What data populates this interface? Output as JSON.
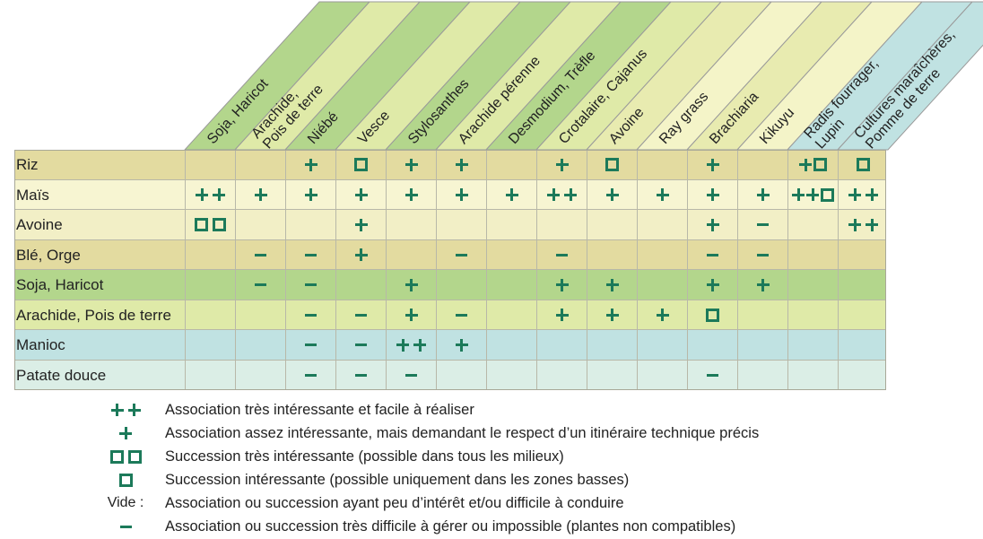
{
  "columns": [
    {
      "label_lines": [
        "Soja, Haricot"
      ],
      "fill": "#b3d68c"
    },
    {
      "label_lines": [
        "Arachide,",
        "Pois de terre"
      ],
      "fill": "#dfeaa8"
    },
    {
      "label_lines": [
        "Niébé"
      ],
      "fill": "#b3d68c"
    },
    {
      "label_lines": [
        "Vesce"
      ],
      "fill": "#dfeaa8"
    },
    {
      "label_lines": [
        "Stylosanthes"
      ],
      "fill": "#b3d68c"
    },
    {
      "label_lines": [
        "Arachide pérenne"
      ],
      "fill": "#dfeaa8"
    },
    {
      "label_lines": [
        "Desmodium, Trèfle"
      ],
      "fill": "#b3d68c"
    },
    {
      "label_lines": [
        "Crotalaire, Cajanus"
      ],
      "fill": "#dfeaa8"
    },
    {
      "label_lines": [
        "Avoine"
      ],
      "fill": "#e8ebb0"
    },
    {
      "label_lines": [
        "Ray grass"
      ],
      "fill": "#f4f4c8"
    },
    {
      "label_lines": [
        "Brachiaria"
      ],
      "fill": "#e8ebb0"
    },
    {
      "label_lines": [
        "Kikuyu"
      ],
      "fill": "#f4f4c8"
    },
    {
      "label_lines": [
        "Radis fourrager,",
        "Lupin"
      ],
      "fill": "#c0e2e2"
    },
    {
      "label_lines": [
        "Cultures maraîchères,",
        "Pomme de terre"
      ],
      "fill": "#c0e2e2"
    }
  ],
  "rows": [
    {
      "label": "Riz",
      "fill": "#e3dba0",
      "cells": [
        "",
        "",
        "",
        "+",
        "sq",
        "+",
        "+",
        "",
        "+",
        "sq",
        "",
        "+",
        "",
        "+sq",
        "sq"
      ]
    },
    {
      "label": "Maïs",
      "fill": "#f7f5d2",
      "cells": [
        "",
        "++",
        "+",
        "+",
        "+",
        "+",
        "+",
        "+",
        "++",
        "+",
        "+",
        "+",
        "+",
        "++sq",
        "++"
      ]
    },
    {
      "label": "Avoine",
      "fill": "#f2efc6",
      "cells": [
        "",
        "sqsq",
        "",
        "",
        "+",
        "",
        "",
        "",
        "",
        "",
        "",
        "+",
        "-",
        "",
        "++"
      ]
    },
    {
      "label": "Blé, Orge",
      "fill": "#e3dba0",
      "cells": [
        "",
        "",
        "-",
        "-",
        "+",
        "",
        "-",
        "",
        "-",
        "",
        "",
        "-",
        "-",
        "",
        ""
      ]
    },
    {
      "label": "Soja, Haricot",
      "fill": "#b3d68c",
      "cells": [
        "",
        "",
        "-",
        "-",
        "",
        "+",
        "",
        "",
        "+",
        "+",
        "",
        "+",
        "+",
        "",
        ""
      ]
    },
    {
      "label": "Arachide, Pois de terre",
      "fill": "#dfeaa8",
      "cells": [
        "",
        "",
        "",
        "-",
        "-",
        "+",
        "-",
        "",
        "+",
        "+",
        "+",
        "sq",
        "",
        "",
        ""
      ]
    },
    {
      "label": "Manioc",
      "fill": "#c0e2e2",
      "cells": [
        "",
        "",
        "",
        "-",
        "-",
        "++",
        "+",
        "",
        "",
        "",
        "",
        "",
        "",
        "",
        ""
      ]
    },
    {
      "label": "Patate douce",
      "fill": "#dbeee6",
      "cells": [
        "",
        "",
        "",
        "-",
        "-",
        "-",
        "",
        "",
        "",
        "",
        "",
        "-",
        "",
        "",
        ""
      ]
    }
  ],
  "legend": [
    {
      "symbol": "++",
      "symbol_text": "",
      "text": "Association très intéressante et facile à réaliser"
    },
    {
      "symbol": "+",
      "symbol_text": "",
      "text": "Association assez intéressante, mais demandant le respect d’un itinéraire technique précis"
    },
    {
      "symbol": "sqsq",
      "symbol_text": "",
      "text": "Succession très intéressante (possible dans tous les milieux)"
    },
    {
      "symbol": "sq",
      "symbol_text": "",
      "text": "Succession intéressante (possible uniquement dans les zones basses)"
    },
    {
      "symbol": "",
      "symbol_text": "Vide :",
      "text": "Association ou succession ayant peu d’intérêt et/ou difficile à conduire"
    },
    {
      "symbol": "-",
      "symbol_text": "",
      "text": "Association ou succession très difficile à gérer ou impossible (plantes non compatibles)"
    }
  ],
  "colors": {
    "symbol": "#1c7a5a",
    "border": "#b8b8a8",
    "header_stroke": "#9a9a9a"
  }
}
